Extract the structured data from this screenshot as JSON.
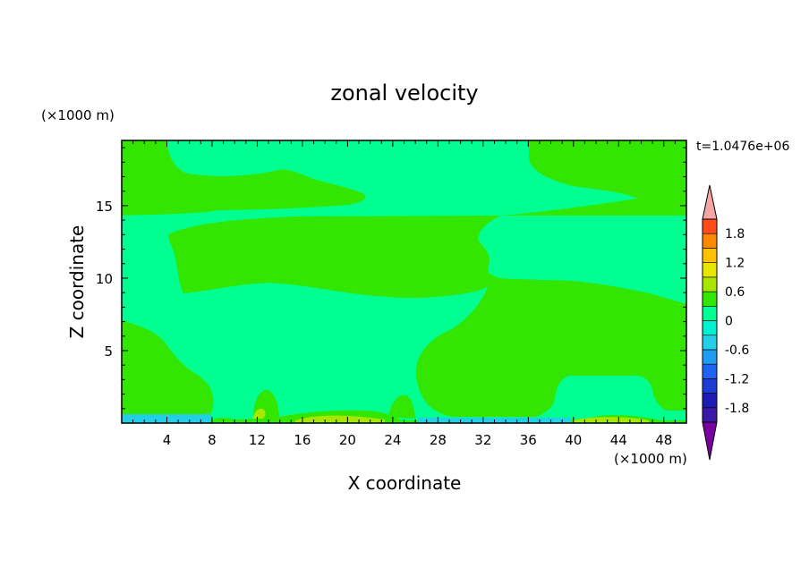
{
  "chart_data": {
    "type": "heatmap",
    "title": "zonal velocity",
    "xlabel": "X coordinate",
    "ylabel": "Z coordinate",
    "x_unit": "(×1000 m)",
    "y_unit": "(×1000 m)",
    "time_label": "t=1.0476e+06",
    "xlim": [
      0,
      50
    ],
    "ylim": [
      0,
      19.5
    ],
    "x_ticks": [
      4,
      8,
      12,
      16,
      20,
      24,
      28,
      32,
      36,
      40,
      44,
      48
    ],
    "y_ticks": [
      5,
      10,
      15
    ],
    "colorbar": {
      "labels": [
        "1.8",
        "1.2",
        "0.6",
        "0",
        "-0.6",
        "-1.2",
        "-1.8"
      ],
      "label_values": [
        1.8,
        1.2,
        0.6,
        0,
        -0.6,
        -1.2,
        -1.8
      ],
      "levels": [
        -2.1,
        -1.8,
        -1.5,
        -1.2,
        -0.9,
        -0.6,
        -0.3,
        0,
        0.3,
        0.6,
        0.9,
        1.2,
        1.5,
        1.8,
        2.1
      ],
      "colors": [
        "#7a00a0",
        "#3a18a8",
        "#1c1cb4",
        "#1c3cd6",
        "#1f63f2",
        "#1d9cf0",
        "#22cfe6",
        "#00f0d0",
        "#00ff90",
        "#33e600",
        "#a8e600",
        "#e6e600",
        "#ffc000",
        "#ff8a00",
        "#ff4a1a",
        "#ee1a1a",
        "#f4a6a6"
      ]
    },
    "regions": [
      {
        "level": "0 to 0.3",
        "color": "#00ff90",
        "description": "background"
      },
      {
        "level": "0.3 to 0.6",
        "color": "#33e600",
        "area": "upper-left band z 15-19.5, x 0-22"
      },
      {
        "level": "0.3 to 0.6",
        "color": "#33e600",
        "area": "upper-right corner z 15-19.5, x 37-50"
      },
      {
        "level": "0.3 to 0.6",
        "color": "#33e600",
        "area": "central blob z 9-14.5, x 4-33"
      },
      {
        "level": "0.3 to 0.6",
        "color": "#33e600",
        "area": "right region z 1-11, x 26-50"
      },
      {
        "level": "0.3 to 0.6",
        "color": "#33e600",
        "area": "lower-left z 0.5-7, x 0-8"
      },
      {
        "level": "0.6 to 0.9",
        "color": "#a8e600",
        "area": "near-surface patches z 0-1"
      },
      {
        "level": "-0.3 to 0",
        "color": "#22cfe6",
        "area": "surface strip z 0-0.5"
      }
    ]
  }
}
